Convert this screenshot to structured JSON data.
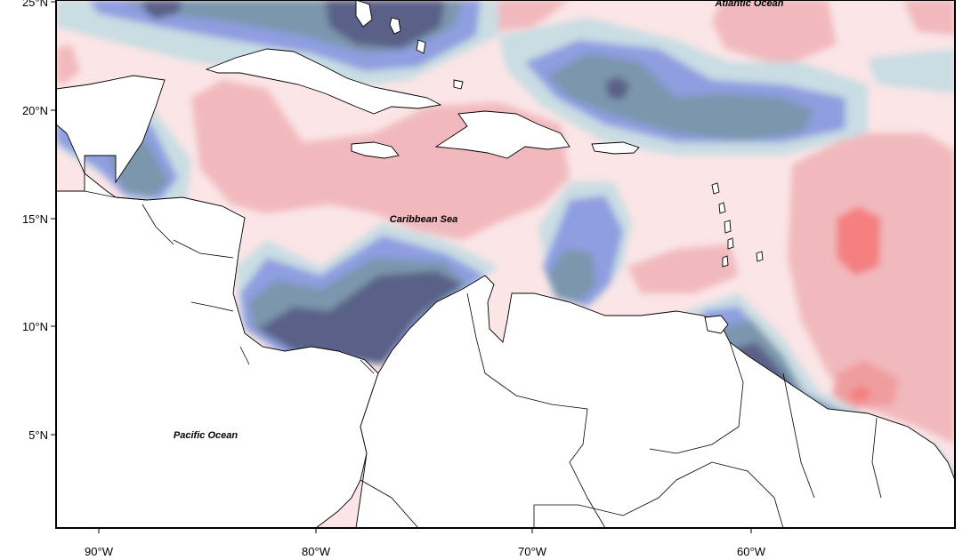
{
  "map": {
    "labels": {
      "atlantic": "Atlantic Ocean",
      "caribbean": "Caribbean Sea",
      "pacific": "Pacific Ocean"
    },
    "lat_ticks": [
      "25°N",
      "20°N",
      "15°N",
      "10°N",
      "5°N"
    ],
    "lon_ticks": [
      "90°W",
      "80°W",
      "70°W",
      "60°W"
    ],
    "colors": {
      "neg_darkest": "#3c3f8a",
      "neg_dark": "#5a6187",
      "neg_mid": "#7c96ad",
      "neg_light": "#8e9ee0",
      "neg_pale": "#c9dde3",
      "pos_pale": "#fbe5e6",
      "pos_light": "#f1b9bd",
      "pos_mid": "#ef9ea0",
      "pos_strong": "#f48080",
      "land": "#ffffff",
      "coast": "#000000"
    }
  }
}
